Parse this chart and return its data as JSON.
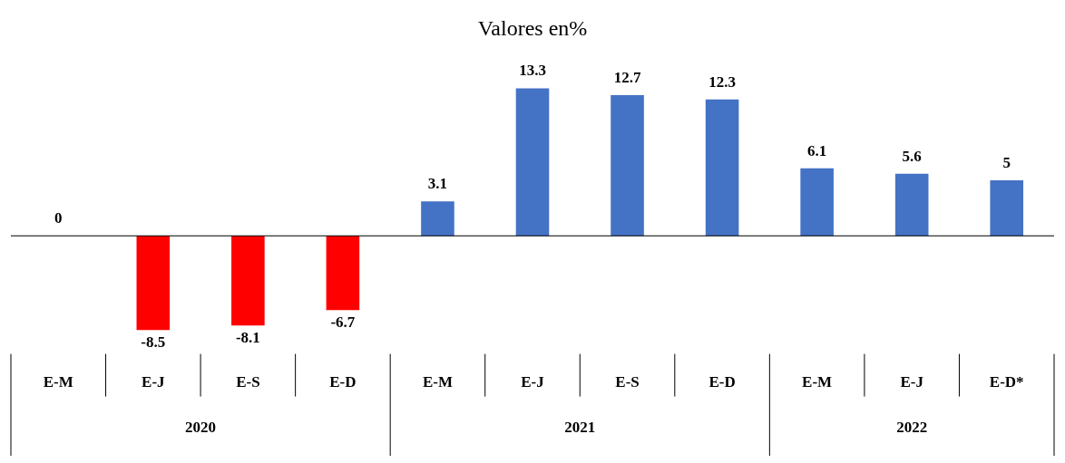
{
  "chart_data": {
    "type": "bar",
    "title": "Valores en%",
    "categories": [
      "E-M",
      "E-J",
      "E-S",
      "E-D",
      "E-M",
      "E-J",
      "E-S",
      "E-D",
      "E-M",
      "E-J",
      "E-D*"
    ],
    "values": [
      0,
      -8.5,
      -8.1,
      -6.7,
      3.1,
      13.3,
      12.7,
      12.3,
      6.1,
      5.6,
      5
    ],
    "colors": [
      "#ff0000",
      "#ff0000",
      "#ff0000",
      "#ff0000",
      "#4472c4",
      "#4472c4",
      "#4472c4",
      "#4472c4",
      "#4472c4",
      "#4472c4",
      "#4472c4"
    ],
    "data_labels": true,
    "annotations": [
      "2020",
      "2021",
      "2022"
    ],
    "ref_lines": [
      {
        "axis": "y",
        "value": 0,
        "color": "#000000"
      }
    ],
    "grid": false,
    "legend": false
  }
}
